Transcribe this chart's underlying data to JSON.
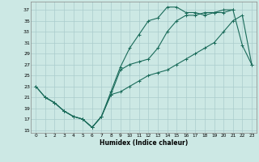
{
  "xlabel": "Humidex (Indice chaleur)",
  "bg_color": "#cce8e4",
  "grid_color": "#aacccc",
  "line_color": "#1a6b5a",
  "xlim": [
    -0.5,
    23.5
  ],
  "ylim": [
    14.5,
    38.5
  ],
  "yticks": [
    15,
    17,
    19,
    21,
    23,
    25,
    27,
    29,
    31,
    33,
    35,
    37
  ],
  "xticks": [
    0,
    1,
    2,
    3,
    4,
    5,
    6,
    7,
    8,
    9,
    10,
    11,
    12,
    13,
    14,
    15,
    16,
    17,
    18,
    19,
    20,
    21,
    22,
    23
  ],
  "line1_x": [
    0,
    1,
    2,
    3,
    4,
    5,
    6,
    7,
    8,
    9,
    10,
    11,
    12,
    13,
    14,
    15,
    16,
    17,
    18,
    19,
    20,
    21
  ],
  "line1_y": [
    23,
    21,
    20,
    18.5,
    17.5,
    17,
    15.5,
    17.5,
    22,
    26.5,
    30,
    32.5,
    35,
    35.5,
    37.5,
    37.5,
    36.5,
    36.5,
    36,
    36.5,
    37,
    37
  ],
  "line2_x": [
    0,
    1,
    2,
    3,
    4,
    5,
    6,
    7,
    8,
    9,
    10,
    11,
    12,
    13,
    14,
    15,
    16,
    17,
    18,
    19,
    20,
    21,
    22,
    23
  ],
  "line2_y": [
    23,
    21,
    20,
    18.5,
    17.5,
    17,
    15.5,
    17.5,
    21.5,
    26,
    27,
    27.5,
    28,
    30,
    33,
    35,
    36,
    36,
    36.5,
    36.5,
    36.5,
    37,
    30.5,
    27
  ],
  "line3_x": [
    1,
    2,
    3,
    4,
    5,
    6,
    7,
    8,
    9,
    10,
    11,
    12,
    13,
    14,
    15,
    16,
    17,
    18,
    19,
    20,
    21,
    22,
    23
  ],
  "line3_y": [
    21,
    20,
    18.5,
    17.5,
    17,
    15.5,
    17.5,
    21.5,
    22,
    23,
    24,
    25,
    25.5,
    26,
    27,
    28,
    29,
    30,
    31,
    33,
    35,
    36,
    27
  ]
}
